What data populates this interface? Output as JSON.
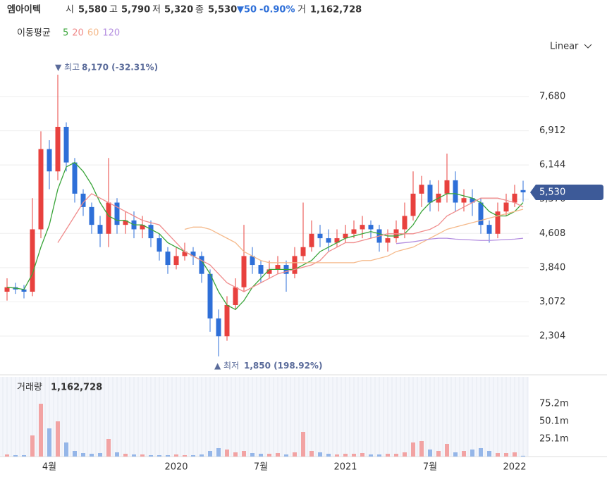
{
  "header": {
    "name": "엠아이텍",
    "open_label": "시",
    "open": "5,580",
    "high_label": "고",
    "high": "5,790",
    "low_label": "저",
    "low": "5,320",
    "close_label": "종",
    "close": "5,530",
    "change": "▼50",
    "change_pct": "-0.90%",
    "volume_label": "거",
    "volume": "1,162,728",
    "ma_label": "이동평균",
    "scale": "Linear"
  },
  "chart_data": [
    {
      "type": "candlestick",
      "up_color": "#e8413e",
      "down_color": "#2e6fd8",
      "categories": [
        null,
        null,
        null,
        null,
        null,
        "4월",
        null,
        null,
        null,
        null,
        null,
        null,
        null,
        null,
        null,
        null,
        null,
        null,
        null,
        null,
        "2020",
        null,
        null,
        null,
        null,
        null,
        null,
        null,
        null,
        null,
        "7월",
        null,
        null,
        null,
        null,
        null,
        null,
        null,
        null,
        null,
        "2021",
        null,
        null,
        null,
        null,
        null,
        null,
        null,
        null,
        null,
        "7월",
        null,
        null,
        null,
        null,
        null,
        null,
        null,
        null,
        null,
        "2022",
        null
      ],
      "open": [
        3300,
        3400,
        3350,
        3300,
        4700,
        6500,
        6000,
        7000,
        6200,
        5500,
        5200,
        4800,
        4600,
        5300,
        4800,
        4900,
        4700,
        4800,
        4500,
        4200,
        3900,
        4100,
        4200,
        4100,
        3700,
        2700,
        2300,
        3000,
        3400,
        4100,
        3900,
        3700,
        3800,
        3900,
        3700,
        4100,
        4300,
        4600,
        4500,
        4400,
        4500,
        4600,
        4700,
        4800,
        4700,
        4400,
        4500,
        4700,
        5000,
        5500,
        5700,
        5300,
        5500,
        5800,
        5300,
        5400,
        5300,
        4800,
        4600,
        5100,
        5300,
        5580
      ],
      "high": [
        3600,
        3500,
        3450,
        5400,
        6900,
        6700,
        8170,
        7100,
        6300,
        5600,
        5300,
        5000,
        6300,
        5400,
        5100,
        5100,
        5000,
        4900,
        4600,
        4300,
        4300,
        4400,
        4300,
        4200,
        3800,
        2900,
        3200,
        3600,
        4800,
        4300,
        4000,
        4000,
        4100,
        4000,
        4300,
        5300,
        4900,
        4800,
        4700,
        4700,
        4800,
        4900,
        5000,
        4900,
        4800,
        4700,
        4900,
        5300,
        6000,
        5900,
        5800,
        5800,
        6400,
        6000,
        5600,
        5600,
        5400,
        4900,
        5300,
        5500,
        5700,
        5790
      ],
      "low": [
        3100,
        3250,
        3150,
        3200,
        4500,
        5600,
        5800,
        6000,
        5300,
        5000,
        4600,
        4300,
        4300,
        4600,
        4600,
        4500,
        4500,
        4300,
        4000,
        3700,
        3800,
        4000,
        3900,
        3500,
        2400,
        1850,
        2200,
        2900,
        3300,
        3700,
        3500,
        3600,
        3700,
        3300,
        3600,
        4000,
        4200,
        4300,
        4200,
        4300,
        4400,
        4500,
        4500,
        4500,
        4200,
        4200,
        4400,
        4500,
        4900,
        5200,
        5100,
        5100,
        5300,
        5100,
        5100,
        5000,
        4600,
        4400,
        4500,
        5000,
        5200,
        5320
      ],
      "close": [
        3400,
        3350,
        3300,
        4700,
        6500,
        6000,
        7000,
        6200,
        5500,
        5200,
        4800,
        4600,
        5300,
        4800,
        4900,
        4700,
        4800,
        4500,
        4200,
        3900,
        4100,
        4200,
        4100,
        3700,
        2700,
        2300,
        3000,
        3400,
        4100,
        3900,
        3700,
        3800,
        3900,
        3700,
        4100,
        4300,
        4600,
        4500,
        4400,
        4500,
        4600,
        4700,
        4800,
        4700,
        4400,
        4500,
        4700,
        5000,
        5500,
        5700,
        5300,
        5500,
        5800,
        5300,
        5400,
        5300,
        4800,
        4600,
        5100,
        5300,
        5500,
        5530
      ],
      "series": [
        {
          "name": "5",
          "color": "#3aa53a",
          "values": [
            3400,
            3380,
            3350,
            3700,
            4300,
            4800,
            5600,
            6100,
            6200,
            6000,
            5700,
            5300,
            5000,
            4900,
            4900,
            4800,
            4800,
            4700,
            4600,
            4400,
            4300,
            4200,
            4100,
            4000,
            3700,
            3300,
            3000,
            2900,
            3100,
            3400,
            3600,
            3800,
            3800,
            3800,
            3800,
            3900,
            4000,
            4200,
            4300,
            4400,
            4500,
            4550,
            4600,
            4650,
            4600,
            4550,
            4550,
            4600,
            4800,
            5100,
            5300,
            5400,
            5500,
            5500,
            5450,
            5400,
            5300,
            5100,
            5000,
            5000,
            5100,
            5300
          ]
        },
        {
          "name": "20",
          "color": "#f08c8c",
          "values": [
            null,
            null,
            null,
            null,
            null,
            null,
            4400,
            4700,
            5000,
            5300,
            5500,
            5400,
            5300,
            5200,
            5100,
            5000,
            4900,
            4850,
            4800,
            4600,
            4400,
            4200,
            4100,
            4000,
            3900,
            3700,
            3500,
            3400,
            3300,
            3400,
            3500,
            3600,
            3700,
            3750,
            3800,
            3850,
            3900,
            4000,
            4200,
            4300,
            4400,
            4400,
            4450,
            4500,
            4550,
            4600,
            4600,
            4600,
            4600,
            4650,
            4700,
            4800,
            5000,
            5100,
            5200,
            5300,
            5400,
            5400,
            5400,
            5350,
            5300,
            5200
          ]
        },
        {
          "name": "60",
          "color": "#f5b98a",
          "values": [
            null,
            null,
            null,
            null,
            null,
            null,
            null,
            null,
            null,
            null,
            null,
            null,
            null,
            null,
            null,
            null,
            null,
            null,
            null,
            null,
            null,
            4700,
            4750,
            4750,
            4700,
            4600,
            4500,
            4400,
            4200,
            4100,
            4000,
            3950,
            3950,
            3950,
            3950,
            3950,
            3950,
            3950,
            3950,
            3950,
            3950,
            3950,
            4000,
            4000,
            4050,
            4100,
            4200,
            4250,
            4300,
            4400,
            4500,
            4600,
            4700,
            4750,
            4800,
            4850,
            4900,
            4950,
            5000,
            5050,
            5100,
            5150
          ]
        },
        {
          "name": "120",
          "color": "#b48ee0",
          "values": [
            null,
            null,
            null,
            null,
            null,
            null,
            null,
            null,
            null,
            null,
            null,
            null,
            null,
            null,
            null,
            null,
            null,
            null,
            null,
            null,
            null,
            null,
            null,
            null,
            null,
            null,
            null,
            null,
            null,
            null,
            null,
            null,
            null,
            null,
            null,
            null,
            null,
            null,
            null,
            null,
            null,
            null,
            null,
            null,
            null,
            null,
            4380,
            4400,
            4420,
            4450,
            4480,
            4500,
            4500,
            4480,
            4470,
            4460,
            4450,
            4450,
            4460,
            4470,
            4480,
            4500
          ]
        }
      ],
      "ylim": [
        1466,
        8344
      ],
      "yticks": [
        {
          "value": 2304,
          "label": "2,304"
        },
        {
          "value": 3072,
          "label": "3,072"
        },
        {
          "value": 3840,
          "label": "3,840"
        },
        {
          "value": 4608,
          "label": "4,608"
        },
        {
          "value": 5376,
          "label": "5,376"
        },
        {
          "value": 6144,
          "label": "6,144"
        },
        {
          "value": 6912,
          "label": "6,912"
        },
        {
          "value": 7680,
          "label": "7,680"
        }
      ],
      "grid": true,
      "annotations": {
        "high_label": "▼ 최고",
        "high_text": "8,170 (-32.31%)",
        "low_label": "▲ 최저",
        "low_text": "1,850 (198.92%)",
        "last_price": "5,530"
      }
    },
    {
      "type": "bar",
      "title": "거래량",
      "title_value": "1,162,728",
      "values": [
        3,
        2,
        2,
        30,
        75,
        40,
        50,
        20,
        8,
        5,
        4,
        5,
        25,
        6,
        4,
        3,
        3,
        2,
        2,
        2,
        3,
        2,
        2,
        3,
        8,
        12,
        10,
        6,
        8,
        5,
        4,
        4,
        5,
        3,
        6,
        35,
        8,
        6,
        4,
        3,
        4,
        4,
        5,
        3,
        3,
        4,
        4,
        6,
        20,
        22,
        10,
        8,
        18,
        6,
        8,
        10,
        12,
        8,
        5,
        5,
        6,
        1.16
      ],
      "ylim": [
        0,
        113
      ],
      "yticks": [
        {
          "value": 25.1,
          "label": "25.1m"
        },
        {
          "value": 50.1,
          "label": "50.1m"
        },
        {
          "value": 75.2,
          "label": "75.2m"
        }
      ]
    }
  ]
}
